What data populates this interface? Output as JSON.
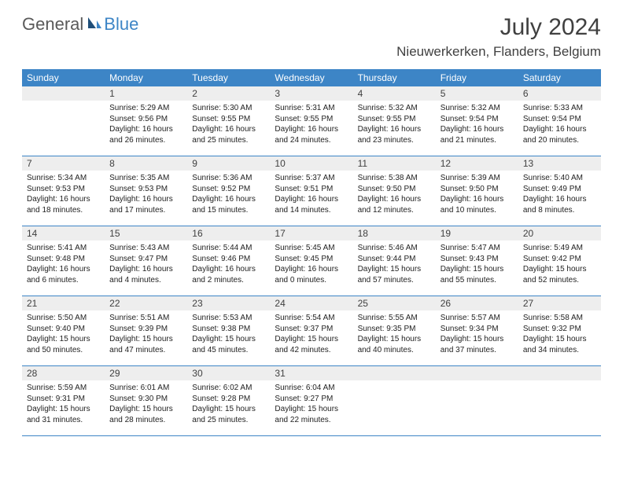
{
  "logo": {
    "part1": "General",
    "part2": "Blue"
  },
  "title": "July 2024",
  "location": "Nieuwerkerken, Flanders, Belgium",
  "colors": {
    "header_bg": "#3d85c6",
    "daynum_bg": "#eeeeee",
    "divider": "#3d85c6",
    "logo_gray": "#5a5a5a",
    "logo_blue": "#3d85c6"
  },
  "day_names": [
    "Sunday",
    "Monday",
    "Tuesday",
    "Wednesday",
    "Thursday",
    "Friday",
    "Saturday"
  ],
  "weeks": [
    [
      {
        "n": "",
        "sunrise": "",
        "sunset": "",
        "day1": "",
        "day2": ""
      },
      {
        "n": "1",
        "sunrise": "Sunrise: 5:29 AM",
        "sunset": "Sunset: 9:56 PM",
        "day1": "Daylight: 16 hours",
        "day2": "and 26 minutes."
      },
      {
        "n": "2",
        "sunrise": "Sunrise: 5:30 AM",
        "sunset": "Sunset: 9:55 PM",
        "day1": "Daylight: 16 hours",
        "day2": "and 25 minutes."
      },
      {
        "n": "3",
        "sunrise": "Sunrise: 5:31 AM",
        "sunset": "Sunset: 9:55 PM",
        "day1": "Daylight: 16 hours",
        "day2": "and 24 minutes."
      },
      {
        "n": "4",
        "sunrise": "Sunrise: 5:32 AM",
        "sunset": "Sunset: 9:55 PM",
        "day1": "Daylight: 16 hours",
        "day2": "and 23 minutes."
      },
      {
        "n": "5",
        "sunrise": "Sunrise: 5:32 AM",
        "sunset": "Sunset: 9:54 PM",
        "day1": "Daylight: 16 hours",
        "day2": "and 21 minutes."
      },
      {
        "n": "6",
        "sunrise": "Sunrise: 5:33 AM",
        "sunset": "Sunset: 9:54 PM",
        "day1": "Daylight: 16 hours",
        "day2": "and 20 minutes."
      }
    ],
    [
      {
        "n": "7",
        "sunrise": "Sunrise: 5:34 AM",
        "sunset": "Sunset: 9:53 PM",
        "day1": "Daylight: 16 hours",
        "day2": "and 18 minutes."
      },
      {
        "n": "8",
        "sunrise": "Sunrise: 5:35 AM",
        "sunset": "Sunset: 9:53 PM",
        "day1": "Daylight: 16 hours",
        "day2": "and 17 minutes."
      },
      {
        "n": "9",
        "sunrise": "Sunrise: 5:36 AM",
        "sunset": "Sunset: 9:52 PM",
        "day1": "Daylight: 16 hours",
        "day2": "and 15 minutes."
      },
      {
        "n": "10",
        "sunrise": "Sunrise: 5:37 AM",
        "sunset": "Sunset: 9:51 PM",
        "day1": "Daylight: 16 hours",
        "day2": "and 14 minutes."
      },
      {
        "n": "11",
        "sunrise": "Sunrise: 5:38 AM",
        "sunset": "Sunset: 9:50 PM",
        "day1": "Daylight: 16 hours",
        "day2": "and 12 minutes."
      },
      {
        "n": "12",
        "sunrise": "Sunrise: 5:39 AM",
        "sunset": "Sunset: 9:50 PM",
        "day1": "Daylight: 16 hours",
        "day2": "and 10 minutes."
      },
      {
        "n": "13",
        "sunrise": "Sunrise: 5:40 AM",
        "sunset": "Sunset: 9:49 PM",
        "day1": "Daylight: 16 hours",
        "day2": "and 8 minutes."
      }
    ],
    [
      {
        "n": "14",
        "sunrise": "Sunrise: 5:41 AM",
        "sunset": "Sunset: 9:48 PM",
        "day1": "Daylight: 16 hours",
        "day2": "and 6 minutes."
      },
      {
        "n": "15",
        "sunrise": "Sunrise: 5:43 AM",
        "sunset": "Sunset: 9:47 PM",
        "day1": "Daylight: 16 hours",
        "day2": "and 4 minutes."
      },
      {
        "n": "16",
        "sunrise": "Sunrise: 5:44 AM",
        "sunset": "Sunset: 9:46 PM",
        "day1": "Daylight: 16 hours",
        "day2": "and 2 minutes."
      },
      {
        "n": "17",
        "sunrise": "Sunrise: 5:45 AM",
        "sunset": "Sunset: 9:45 PM",
        "day1": "Daylight: 16 hours",
        "day2": "and 0 minutes."
      },
      {
        "n": "18",
        "sunrise": "Sunrise: 5:46 AM",
        "sunset": "Sunset: 9:44 PM",
        "day1": "Daylight: 15 hours",
        "day2": "and 57 minutes."
      },
      {
        "n": "19",
        "sunrise": "Sunrise: 5:47 AM",
        "sunset": "Sunset: 9:43 PM",
        "day1": "Daylight: 15 hours",
        "day2": "and 55 minutes."
      },
      {
        "n": "20",
        "sunrise": "Sunrise: 5:49 AM",
        "sunset": "Sunset: 9:42 PM",
        "day1": "Daylight: 15 hours",
        "day2": "and 52 minutes."
      }
    ],
    [
      {
        "n": "21",
        "sunrise": "Sunrise: 5:50 AM",
        "sunset": "Sunset: 9:40 PM",
        "day1": "Daylight: 15 hours",
        "day2": "and 50 minutes."
      },
      {
        "n": "22",
        "sunrise": "Sunrise: 5:51 AM",
        "sunset": "Sunset: 9:39 PM",
        "day1": "Daylight: 15 hours",
        "day2": "and 47 minutes."
      },
      {
        "n": "23",
        "sunrise": "Sunrise: 5:53 AM",
        "sunset": "Sunset: 9:38 PM",
        "day1": "Daylight: 15 hours",
        "day2": "and 45 minutes."
      },
      {
        "n": "24",
        "sunrise": "Sunrise: 5:54 AM",
        "sunset": "Sunset: 9:37 PM",
        "day1": "Daylight: 15 hours",
        "day2": "and 42 minutes."
      },
      {
        "n": "25",
        "sunrise": "Sunrise: 5:55 AM",
        "sunset": "Sunset: 9:35 PM",
        "day1": "Daylight: 15 hours",
        "day2": "and 40 minutes."
      },
      {
        "n": "26",
        "sunrise": "Sunrise: 5:57 AM",
        "sunset": "Sunset: 9:34 PM",
        "day1": "Daylight: 15 hours",
        "day2": "and 37 minutes."
      },
      {
        "n": "27",
        "sunrise": "Sunrise: 5:58 AM",
        "sunset": "Sunset: 9:32 PM",
        "day1": "Daylight: 15 hours",
        "day2": "and 34 minutes."
      }
    ],
    [
      {
        "n": "28",
        "sunrise": "Sunrise: 5:59 AM",
        "sunset": "Sunset: 9:31 PM",
        "day1": "Daylight: 15 hours",
        "day2": "and 31 minutes."
      },
      {
        "n": "29",
        "sunrise": "Sunrise: 6:01 AM",
        "sunset": "Sunset: 9:30 PM",
        "day1": "Daylight: 15 hours",
        "day2": "and 28 minutes."
      },
      {
        "n": "30",
        "sunrise": "Sunrise: 6:02 AM",
        "sunset": "Sunset: 9:28 PM",
        "day1": "Daylight: 15 hours",
        "day2": "and 25 minutes."
      },
      {
        "n": "31",
        "sunrise": "Sunrise: 6:04 AM",
        "sunset": "Sunset: 9:27 PM",
        "day1": "Daylight: 15 hours",
        "day2": "and 22 minutes."
      },
      {
        "n": "",
        "sunrise": "",
        "sunset": "",
        "day1": "",
        "day2": ""
      },
      {
        "n": "",
        "sunrise": "",
        "sunset": "",
        "day1": "",
        "day2": ""
      },
      {
        "n": "",
        "sunrise": "",
        "sunset": "",
        "day1": "",
        "day2": ""
      }
    ]
  ]
}
